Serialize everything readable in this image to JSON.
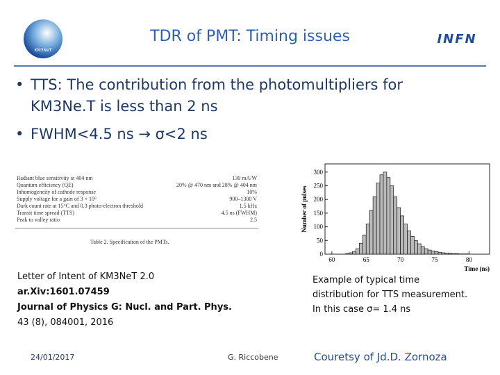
{
  "header": {
    "title": "TDR of PMT: Timing issues",
    "logo_left": "KM3NeT",
    "logo_right": "INFN"
  },
  "bullets": [
    {
      "lines": [
        "TTS: The contribution from the photomultipliers for",
        "KM3Ne.T is less than 2 ns"
      ]
    },
    {
      "lines": [
        "FWHM<4.5 ns → σ<2 ns"
      ]
    }
  ],
  "table": {
    "rows": [
      [
        "Radiant blue sensitivity at 404 nm",
        "130 mA/W"
      ],
      [
        "Quantum efficiency (QE)",
        "20% @ 470 nm and 28% @ 404 nm"
      ],
      [
        "Inhomogeneity of cathode response",
        "10%"
      ],
      [
        "Supply voltage for a gain of 3 × 10⁶",
        "900–1300 V"
      ],
      [
        "Dark count rate at 15°C and 0.3 photo-electron threshold",
        "1.5 kHz"
      ],
      [
        "Transit time spread (TTS)",
        "4.5 ns (FWHM)"
      ],
      [
        "Peak to valley ratio",
        "2.5"
      ]
    ],
    "caption": "Table 2. Specification of the PMTs."
  },
  "plot": {
    "type": "histogram",
    "xlabel": "Time (ns)",
    "ylabel": "Number of pulses",
    "bins": [
      62,
      62.5,
      63,
      63.5,
      64,
      64.5,
      65,
      65.5,
      66,
      66.5,
      67,
      67.5,
      68,
      68.5,
      69,
      69.5,
      70,
      70.5,
      71,
      71.5,
      72,
      72.5,
      73,
      73.5,
      74,
      74.5,
      75,
      75.5,
      76,
      76.5,
      77,
      77.5,
      78,
      78.5,
      79,
      79.5,
      80
    ],
    "values": [
      2,
      5,
      10,
      20,
      40,
      70,
      110,
      160,
      210,
      260,
      290,
      300,
      280,
      250,
      210,
      170,
      140,
      110,
      85,
      65,
      50,
      38,
      28,
      20,
      15,
      12,
      9,
      7,
      5,
      4,
      3,
      2,
      2,
      1,
      1,
      1
    ],
    "color": "#bbbbbb",
    "xlim": [
      59,
      83
    ],
    "xticks": [
      60,
      65,
      70,
      75,
      80
    ],
    "ylim": [
      0,
      330
    ],
    "yticks": [
      0,
      50,
      100,
      150,
      200,
      250,
      300
    ]
  },
  "references": {
    "lines": [
      "Letter of Intent of KM3NeT 2.0",
      "ar.Xiv:1601.07459",
      "Journal of Physics G: Nucl. and Part. Phys.",
      "43 (8), 084001, 2016"
    ]
  },
  "plot_caption": {
    "lines": [
      "Example of typical time",
      "distribution for TTS measurement.",
      "In this case σ= 1.4 ns"
    ]
  },
  "footer": {
    "date": "24/01/2017",
    "author": "G. Riccobene",
    "credit": "Couretsy of Jd.D. Zornoza"
  }
}
